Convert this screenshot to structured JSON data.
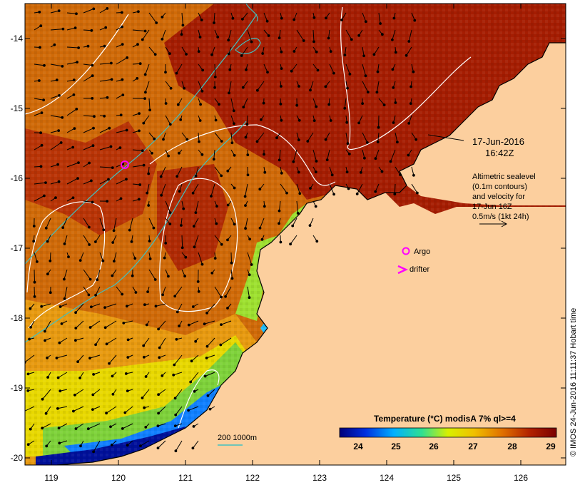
{
  "lat_ticks": [
    "-14",
    "-15",
    "-16",
    "-17",
    "-18",
    "-19",
    "-20"
  ],
  "lon_ticks": [
    "119",
    "120",
    "121",
    "122",
    "123",
    "124",
    "125",
    "126"
  ],
  "timestamp": {
    "date": "17-Jun-2016",
    "time": "16:42Z"
  },
  "altimetry_note": [
    "Altimetric sealevel",
    "(0.1m contours)",
    "and velocity for",
    "17-Jun 16Z",
    "0.5m/s (1kt 24h)"
  ],
  "legend": {
    "argo": "Argo",
    "drifter": "drifter",
    "depth_contours": "200  1000m"
  },
  "colorbar": {
    "title": "Temperature (°C) modisA 7% ql>=4",
    "ticks": [
      "24",
      "25",
      "26",
      "27",
      "28",
      "29"
    ],
    "colors": [
      "#00007a",
      "#0030e0",
      "#00b0ff",
      "#30e090",
      "#d8f000",
      "#f0c000",
      "#e07000",
      "#b02000",
      "#7a0000"
    ]
  },
  "credit": "© IMOS 24-Jun-2016 11:11:37 Hobart time",
  "colors": {
    "land": "#fccf9e",
    "contour": "#ffffff",
    "isobath": "#40c0c0",
    "argo": "#ff00ff"
  }
}
